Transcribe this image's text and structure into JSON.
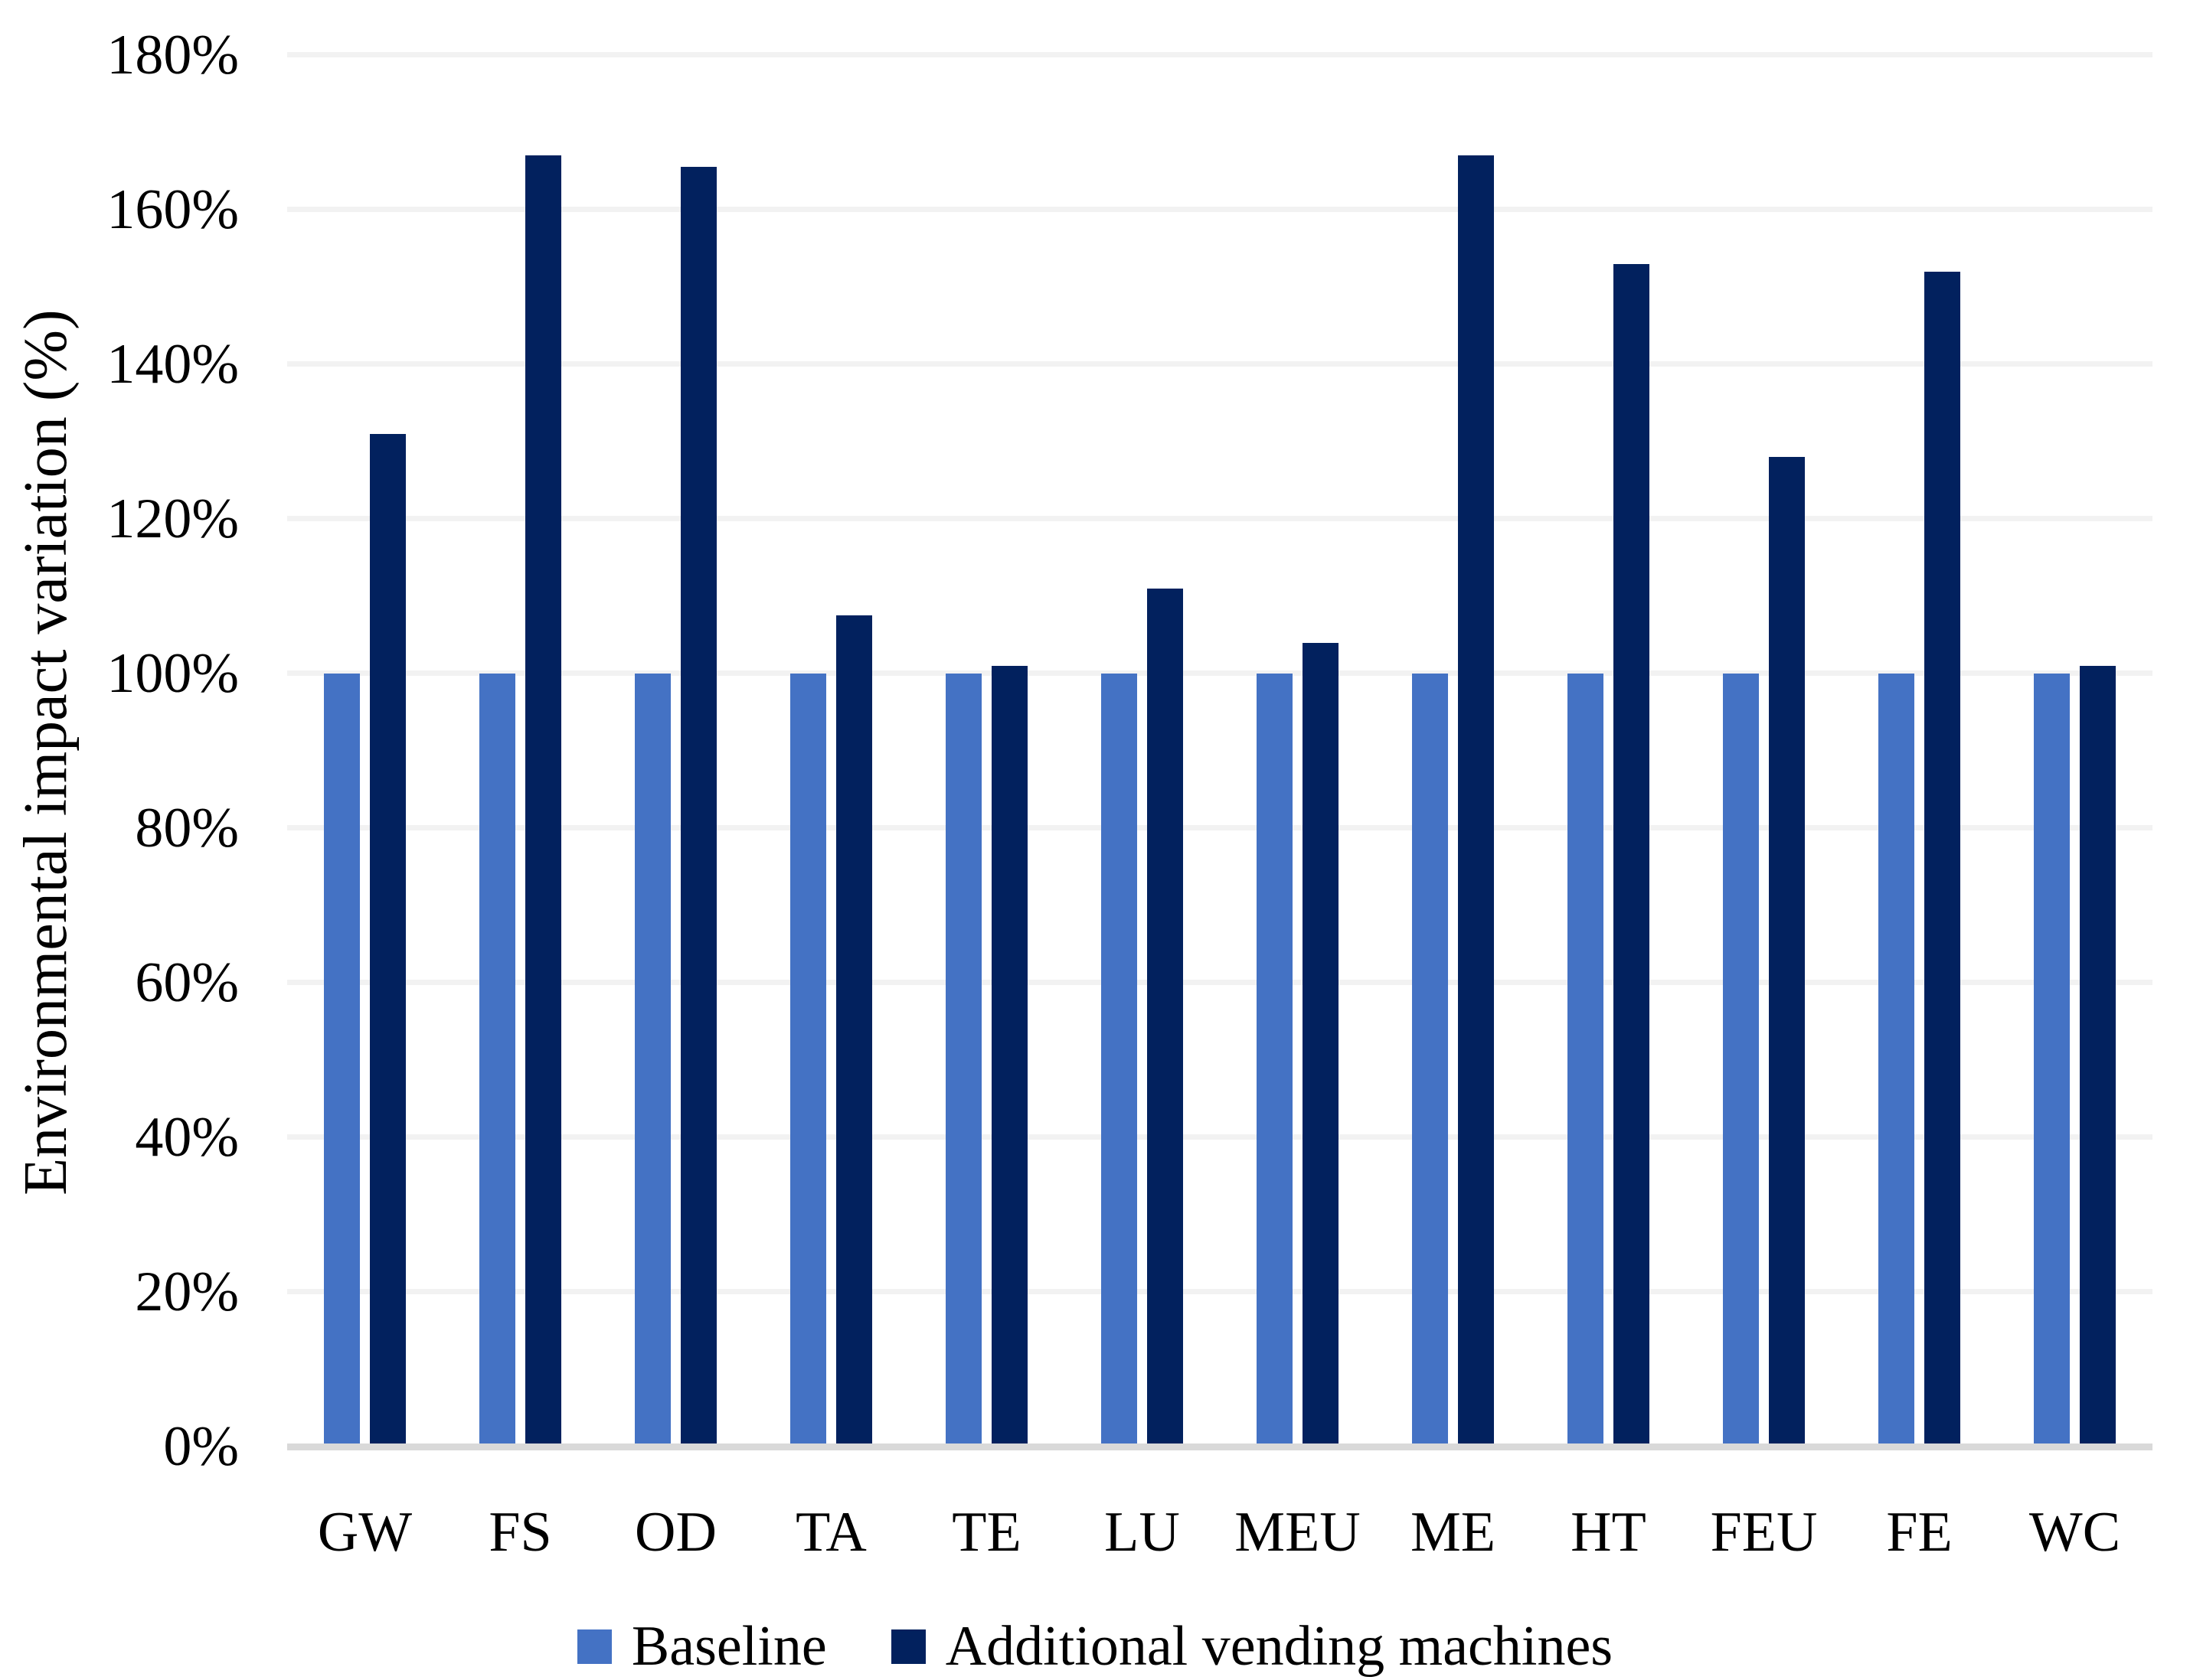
{
  "axes": {
    "y_title": "Environmental impact variation (%)",
    "y_ticks": [
      "0%",
      "20%",
      "40%",
      "60%",
      "80%",
      "100%",
      "120%",
      "140%",
      "160%",
      "180%"
    ]
  },
  "chart_data": {
    "type": "bar",
    "title": "",
    "xlabel": "",
    "ylabel": "Environmental impact variation (%)",
    "categories": [
      "GW",
      "FS",
      "OD",
      "TA",
      "TE",
      "LU",
      "MEU",
      "ME",
      "HT",
      "FEU",
      "FE",
      "WC"
    ],
    "series": [
      {
        "name": "Baseline",
        "color": "#4472C4",
        "values": [
          100,
          100,
          100,
          100,
          100,
          100,
          100,
          100,
          100,
          100,
          100,
          100
        ]
      },
      {
        "name": "Additional vending machines",
        "color": "#02215E",
        "values": [
          131,
          167,
          165.5,
          107.5,
          101,
          111,
          104,
          167,
          153,
          128,
          152,
          101
        ]
      }
    ],
    "ylim": [
      0,
      180
    ],
    "y_tick_step": 20,
    "grid": true,
    "legend_position": "bottom"
  },
  "legend": {
    "items": [
      {
        "label": "Baseline",
        "color": "#4472C4"
      },
      {
        "label": "Additional vending machines",
        "color": "#02215E"
      }
    ]
  },
  "colors": {
    "gridline": "#F2F2F2",
    "axis_line": "#D9D9D9",
    "text": "#000000",
    "background": "#FFFFFF"
  }
}
